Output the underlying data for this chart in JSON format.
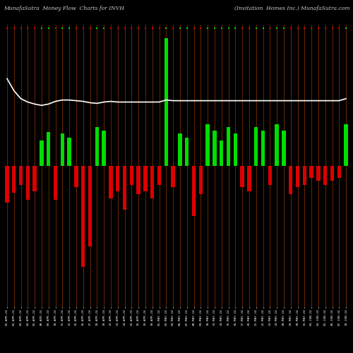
{
  "title_left": "MunafaSutra  Money Flow  Charts for INVH",
  "title_right": "(Invitation  Homes Inc.) MunafaSutra.com",
  "background_color": "#000000",
  "bar_color_positive": "#00dd00",
  "bar_color_negative": "#dd0000",
  "line_color": "#ffffff",
  "thin_line_color": "#8B3000",
  "categories": [
    "01-APR-24",
    "02-APR-24",
    "03-APR-24",
    "04-APR-24",
    "05-APR-24",
    "08-APR-24",
    "09-APR-24",
    "10-APR-24",
    "11-APR-24",
    "12-APR-24",
    "15-APR-24",
    "16-APR-24",
    "17-APR-24",
    "18-APR-24",
    "19-APR-24",
    "22-APR-24",
    "23-APR-24",
    "24-APR-24",
    "25-APR-24",
    "26-APR-24",
    "29-APR-24",
    "30-APR-24",
    "01-MAY-24",
    "02-MAY-24",
    "03-MAY-24",
    "06-MAY-24",
    "07-MAY-24",
    "08-MAY-24",
    "09-MAY-24",
    "10-MAY-24",
    "13-MAY-24",
    "14-MAY-24",
    "15-MAY-24",
    "16-MAY-24",
    "17-MAY-24",
    "20-MAY-24",
    "21-MAY-24",
    "22-MAY-24",
    "23-MAY-24",
    "24-MAY-24",
    "28-MAY-24",
    "29-MAY-24",
    "30-MAY-24",
    "31-MAY-24",
    "03-JUN-24",
    "04-JUN-24",
    "05-JUN-24",
    "06-JUN-24",
    "07-JUN-24",
    "10-JUN-24"
  ],
  "values": [
    -55,
    -40,
    -28,
    -50,
    -38,
    38,
    50,
    -50,
    48,
    42,
    -32,
    -150,
    -120,
    58,
    52,
    -48,
    -38,
    -65,
    -28,
    -42,
    -38,
    -48,
    -28,
    190,
    -32,
    48,
    42,
    -75,
    -42,
    62,
    52,
    38,
    58,
    48,
    -32,
    -38,
    58,
    52,
    -28,
    62,
    52,
    -42,
    -32,
    -28,
    -18,
    -22,
    -28,
    -22,
    -18,
    62
  ],
  "line_values": [
    130,
    112,
    100,
    95,
    92,
    90,
    92,
    96,
    98,
    98,
    97,
    96,
    94,
    93,
    95,
    96,
    95,
    95,
    95,
    95,
    95,
    95,
    95,
    98,
    97,
    97,
    97,
    97,
    97,
    97,
    97,
    97,
    97,
    97,
    97,
    97,
    97,
    97,
    97,
    97,
    97,
    97,
    97,
    97,
    97,
    97,
    97,
    97,
    97,
    100
  ],
  "ylim_min": -210,
  "ylim_max": 210,
  "figsize": [
    5.0,
    5.0
  ],
  "dpi": 100
}
